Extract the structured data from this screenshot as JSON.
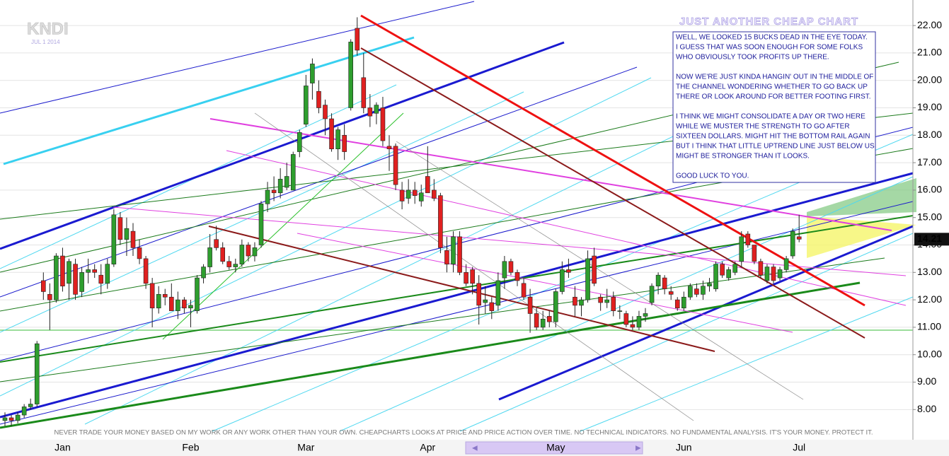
{
  "chart_data": {
    "type": "candlestick",
    "symbol": "KNDI",
    "date": "JUL 1 2014",
    "title": "JUST ANOTHER CHEAP CHART",
    "annotation": [
      "WELL, WE LOOKED 15 BUCKS DEAD IN THE EYE TODAY.",
      "I GUESS THAT WAS SOON ENOUGH FOR SOME FOLKS",
      "WHO OBVIOUSLY TOOK PROFITS UP THERE.",
      "NOW WE'RE JUST KINDA HANGIN' OUT IN THE MIDDLE OF",
      "THE CHANNEL WONDERING WHETHER TO GO BACK UP",
      "THERE OR LOOK AROUND FOR BETTER FOOTING FIRST.",
      "I THINK WE MIGHT CONSOLIDATE A DAY OR TWO HERE",
      "WHILE WE MUSTER THE STRENGTH TO GO AFTER",
      "SIXTEEN DOLLARS. MIGHT HIT THE BOTTOM RAIL AGAIN",
      "BUT I THINK THAT LITTLE UPTREND LINE JUST BELOW US",
      "MIGHT BE STRONGER THAN IT LOOKS.",
      "GOOD LUCK TO YOU."
    ],
    "disclaimer": "NEVER TRADE YOUR MONEY BASED ON MY WORK OR ANY WORK OTHER THAN YOUR OWN. CHEAPCHARTS LOOKS AT PRICE AND PRICE ACTION OVER TIME. NO TECHNICAL INDICATORS. NO FUNDAMENTAL ANALYSIS. IT'S YOUR MONEY. PROTECT IT.",
    "categories": [
      null,
      null,
      null,
      null,
      null,
      null,
      null,
      null,
      null,
      "Jan",
      null,
      null,
      null,
      null,
      null,
      null,
      null,
      null,
      null,
      null,
      null,
      null,
      null,
      null,
      null,
      null,
      null,
      null,
      null,
      "Feb",
      null,
      null,
      null,
      null,
      null,
      null,
      null,
      null,
      null,
      null,
      null,
      null,
      null,
      null,
      null,
      null,
      null,
      "Mar",
      null,
      null,
      null,
      null,
      null,
      null,
      null,
      null,
      null,
      null,
      null,
      null,
      null,
      null,
      null,
      null,
      null,
      null,
      "Apr",
      null,
      null,
      null,
      null,
      null,
      null,
      null,
      null,
      null,
      null,
      null,
      null,
      null,
      null,
      null,
      null,
      null,
      null,
      null,
      "May",
      null,
      null,
      null,
      null,
      null,
      null,
      null,
      null,
      null,
      null,
      null,
      null,
      null,
      null,
      null,
      null,
      null,
      null,
      null,
      "Jun",
      null,
      null,
      null,
      null,
      null,
      null,
      null,
      null,
      null,
      null,
      null,
      null,
      null,
      null,
      null,
      null,
      null,
      "Jul"
    ],
    "open": [
      7.6,
      7.7,
      7.6,
      7.8,
      8.1,
      8.2,
      12.7,
      12.2,
      12.0,
      13.6,
      12.6,
      13.3,
      12.3,
      13.0,
      13.1,
      12.9,
      12.6,
      13.3,
      15.0,
      14.2,
      14.5,
      13.9,
      13.5,
      12.6,
      11.7,
      12.2,
      12.1,
      11.6,
      12.0,
      11.7,
      11.6,
      12.8,
      13.2,
      14.2,
      13.9,
      13.4,
      13.2,
      13.3,
      14.0,
      13.6,
      14.0,
      15.5,
      16.0,
      15.9,
      16.1,
      16.0,
      17.4,
      18.4,
      19.9,
      19.6,
      19.1,
      18.6,
      17.5,
      18.0,
      19.0,
      21.9,
      20.1,
      19.0,
      18.8,
      19.0,
      17.6,
      17.6,
      16.0,
      15.7,
      16.0,
      15.6,
      16.5,
      16.0,
      15.8,
      13.8,
      13.3,
      14.3,
      13.0,
      13.1,
      12.6,
      11.9,
      11.9,
      11.8,
      12.8,
      13.4,
      13.0,
      12.6,
      12.1,
      11.5,
      11.0,
      11.4,
      11.2,
      12.3,
      13.1,
      12.1,
      11.8,
      12.0,
      13.6,
      12.1,
      11.9,
      12.1,
      11.6,
      11.5,
      11.1,
      11.0,
      11.4,
      11.9,
      12.5,
      12.8,
      12.3,
      12.0,
      11.7,
      12.1,
      12.4,
      12.2,
      12.5,
      12.4,
      13.3,
      12.8,
      13.0,
      13.4,
      14.4,
      14.0,
      13.4,
      12.7,
      13.2,
      12.8,
      13.1,
      13.6,
      14.3
    ],
    "high": [
      7.9,
      7.8,
      7.9,
      8.2,
      8.4,
      10.5,
      13.0,
      12.6,
      13.7,
      13.9,
      13.5,
      13.5,
      13.2,
      13.5,
      13.3,
      13.3,
      13.5,
      15.3,
      15.2,
      15.0,
      14.8,
      14.2,
      13.6,
      12.8,
      12.5,
      12.4,
      12.6,
      12.3,
      12.1,
      12.0,
      12.9,
      13.3,
      14.4,
      14.7,
      14.1,
      13.6,
      13.5,
      14.2,
      14.1,
      14.1,
      15.6,
      16.3,
      16.5,
      16.8,
      17.0,
      17.4,
      18.2,
      20.2,
      20.8,
      20.0,
      19.3,
      18.8,
      18.3,
      18.4,
      21.5,
      22.3,
      21.0,
      19.5,
      19.2,
      19.4,
      18.0,
      17.7,
      16.3,
      16.4,
      16.3,
      16.2,
      17.6,
      16.4,
      15.9,
      14.3,
      14.5,
      14.5,
      13.3,
      13.2,
      12.9,
      12.5,
      12.1,
      13.0,
      13.6,
      13.5,
      13.1,
      12.8,
      12.4,
      11.7,
      11.6,
      11.6,
      12.4,
      13.4,
      13.5,
      12.5,
      12.1,
      13.8,
      13.9,
      12.2,
      12.4,
      12.3,
      11.8,
      11.6,
      11.4,
      11.6,
      11.7,
      12.6,
      13.0,
      12.9,
      12.5,
      12.1,
      12.3,
      12.6,
      12.6,
      12.7,
      12.8,
      13.4,
      13.4,
      13.2,
      13.4,
      14.5,
      14.5,
      14.0,
      13.5,
      13.3,
      13.3,
      13.2,
      13.6,
      14.6,
      15.1
    ],
    "low": [
      7.4,
      7.4,
      7.5,
      7.7,
      8.0,
      8.1,
      12.0,
      10.9,
      11.9,
      12.3,
      12.0,
      12.0,
      12.1,
      12.6,
      12.8,
      12.2,
      12.4,
      13.2,
      14.0,
      13.6,
      13.6,
      13.3,
      12.4,
      11.0,
      11.5,
      11.8,
      11.6,
      11.3,
      11.5,
      11.0,
      11.5,
      12.6,
      13.0,
      13.8,
      13.3,
      13.1,
      13.0,
      13.2,
      13.4,
      13.4,
      13.9,
      15.2,
      15.6,
      15.7,
      16.0,
      16.0,
      17.2,
      18.3,
      19.3,
      18.8,
      18.0,
      17.4,
      17.1,
      17.1,
      18.9,
      20.9,
      18.8,
      18.3,
      18.4,
      17.6,
      16.7,
      16.0,
      15.3,
      15.5,
      15.5,
      15.4,
      15.9,
      15.6,
      13.7,
      13.0,
      13.0,
      12.9,
      12.5,
      12.2,
      11.1,
      11.5,
      11.3,
      11.6,
      12.4,
      12.9,
      12.5,
      12.0,
      10.8,
      10.9,
      10.9,
      11.0,
      11.0,
      12.2,
      12.8,
      11.4,
      11.4,
      11.9,
      12.5,
      11.6,
      11.7,
      11.4,
      11.3,
      11.0,
      10.9,
      10.9,
      11.2,
      11.8,
      12.2,
      12.2,
      12.0,
      11.6,
      11.6,
      12.0,
      12.1,
      12.0,
      12.3,
      12.3,
      12.8,
      12.7,
      12.9,
      13.2,
      13.9,
      13.3,
      12.8,
      12.6,
      12.6,
      12.7,
      13.0,
      13.5,
      14.1
    ],
    "close": [
      7.7,
      7.6,
      7.8,
      8.1,
      8.2,
      10.4,
      12.3,
      12.0,
      13.6,
      12.5,
      13.4,
      12.2,
      13.0,
      13.1,
      13.0,
      12.6,
      13.3,
      15.1,
      14.2,
      14.6,
      13.9,
      13.5,
      12.6,
      11.7,
      12.2,
      12.1,
      11.6,
      12.0,
      11.7,
      11.8,
      12.8,
      13.2,
      13.9,
      13.9,
      13.4,
      13.2,
      13.3,
      14.0,
      13.6,
      13.9,
      15.5,
      16.0,
      15.9,
      16.4,
      16.5,
      17.3,
      18.1,
      19.8,
      20.6,
      19.0,
      18.6,
      17.5,
      18.2,
      17.4,
      21.4,
      21.1,
      19.0,
      18.7,
      19.1,
      17.8,
      17.5,
      16.2,
      15.6,
      16.0,
      15.8,
      15.9,
      15.9,
      15.7,
      13.9,
      13.3,
      14.3,
      13.0,
      12.6,
      12.6,
      11.8,
      12.0,
      11.6,
      12.7,
      13.4,
      13.0,
      12.7,
      12.1,
      11.5,
      11.0,
      11.3,
      11.2,
      12.3,
      13.1,
      13.0,
      11.8,
      12.0,
      13.5,
      12.6,
      11.9,
      12.0,
      11.6,
      11.6,
      11.1,
      11.0,
      11.4,
      11.5,
      12.5,
      12.9,
      12.4,
      12.2,
      11.7,
      12.1,
      12.5,
      12.2,
      12.5,
      12.6,
      13.3,
      12.9,
      13.1,
      13.3,
      14.3,
      14.0,
      13.4,
      12.9,
      13.2,
      12.7,
      13.1,
      13.5,
      14.5,
      14.21
    ],
    "up_color": "#2e9e2e",
    "down_color": "#e02020",
    "ylim": [
      6.9,
      22.93
    ],
    "yticks": [
      {
        "value": 8,
        "label": "8.00"
      },
      {
        "value": 9,
        "label": "9.00"
      },
      {
        "value": 10,
        "label": "10.00"
      },
      {
        "value": 11,
        "label": "11.00"
      },
      {
        "value": 12,
        "label": "12.00"
      },
      {
        "value": 13,
        "label": "13.00"
      },
      {
        "value": 14,
        "label": "14.00"
      },
      {
        "value": 15,
        "label": "15.00"
      },
      {
        "value": 16,
        "label": "16.00"
      },
      {
        "value": 17,
        "label": "17.00"
      },
      {
        "value": 18,
        "label": "18.00"
      },
      {
        "value": 19,
        "label": "19.00"
      },
      {
        "value": 20,
        "label": "20.00"
      },
      {
        "value": 21,
        "label": "21.00"
      },
      {
        "value": 22,
        "label": "22.00"
      }
    ],
    "grid": true
  }
}
